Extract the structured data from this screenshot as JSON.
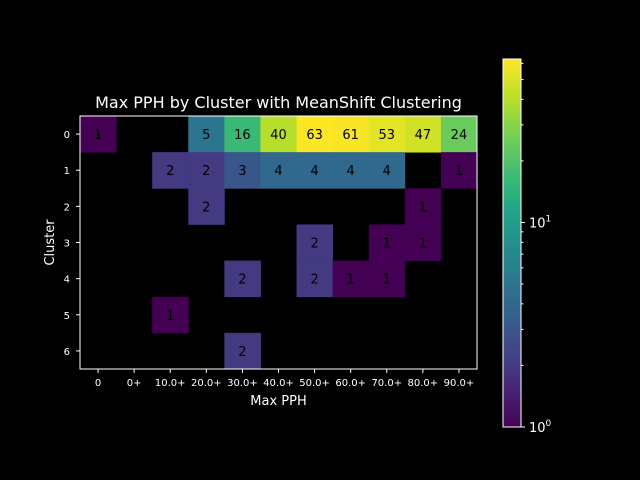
{
  "chart_data": {
    "type": "heatmap",
    "title": "Max PPH by Cluster with MeanShift Clustering",
    "xlabel": "Max PPH",
    "ylabel": "Cluster",
    "x_categories": [
      "0",
      "0+",
      "10.0+",
      "20.0+",
      "30.0+",
      "40.0+",
      "50.0+",
      "60.0+",
      "70.0+",
      "80.0+",
      "90.0+"
    ],
    "y_categories": [
      "0",
      "1",
      "2",
      "3",
      "4",
      "5",
      "6"
    ],
    "values": [
      [
        1,
        null,
        null,
        5,
        16,
        40,
        63,
        61,
        53,
        47,
        24
      ],
      [
        null,
        null,
        2,
        2,
        3,
        4,
        4,
        4,
        4,
        null,
        1
      ],
      [
        null,
        null,
        null,
        2,
        null,
        null,
        null,
        null,
        null,
        1,
        null
      ],
      [
        null,
        null,
        null,
        null,
        null,
        null,
        2,
        null,
        1,
        1,
        null
      ],
      [
        null,
        null,
        null,
        null,
        2,
        null,
        2,
        1,
        1,
        null,
        null
      ],
      [
        null,
        null,
        1,
        null,
        null,
        null,
        null,
        null,
        null,
        null,
        null
      ],
      [
        null,
        null,
        null,
        null,
        2,
        null,
        null,
        null,
        null,
        null,
        null
      ]
    ],
    "colorscale": "viridis",
    "color_scale_type": "log",
    "color_range": [
      1,
      63
    ],
    "colorbar_ticks": [
      "10",
      "10"
    ],
    "colorbar_tick_exponents": [
      "0",
      "1"
    ],
    "colorbar_tick_values": [
      1,
      10
    ]
  }
}
